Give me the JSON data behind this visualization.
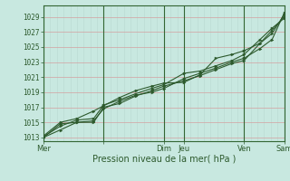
{
  "title": "Pression niveau de la mer( hPa )",
  "bg_color": "#c8e8e0",
  "grid_color_h": "#d4a0a0",
  "grid_color_v_minor": "#b8d8d0",
  "grid_color_v_major": "#336633",
  "line_color": "#2d5a2d",
  "marker_color": "#2d5a2d",
  "yticks": [
    1013,
    1015,
    1017,
    1019,
    1021,
    1023,
    1025,
    1027,
    1029
  ],
  "ylim": [
    1012.5,
    1030.5
  ],
  "xlim": [
    0,
    6.0
  ],
  "xtick_major_pos": [
    0.0,
    1.5,
    3.0,
    3.5,
    5.0,
    6.0
  ],
  "xtick_labels": [
    "Mer",
    "",
    "Dim",
    "Jeu",
    "Ven",
    "Sam"
  ],
  "vline_major": [
    0.0,
    1.5,
    3.0,
    3.5,
    5.0,
    6.0
  ],
  "num_minor_v": 36,
  "lines": [
    {
      "x": [
        0,
        0.42,
        0.83,
        1.25,
        1.5,
        1.9,
        2.3,
        2.7,
        3.0,
        3.5,
        3.9,
        4.3,
        4.7,
        5.0,
        5.4,
        5.7,
        6.0
      ],
      "y": [
        1013.0,
        1014.0,
        1015.0,
        1015.0,
        1017.0,
        1017.5,
        1018.5,
        1019.2,
        1019.8,
        1020.5,
        1021.2,
        1022.0,
        1022.8,
        1023.2,
        1025.5,
        1027.2,
        1029.0
      ]
    },
    {
      "x": [
        0,
        0.42,
        0.83,
        1.25,
        1.5,
        1.9,
        2.3,
        2.7,
        3.0,
        3.5,
        3.9,
        4.3,
        4.7,
        5.0,
        5.4,
        5.7,
        6.0
      ],
      "y": [
        1013.1,
        1014.5,
        1015.3,
        1015.5,
        1017.3,
        1018.0,
        1018.8,
        1019.5,
        1020.0,
        1021.5,
        1021.8,
        1022.5,
        1023.2,
        1024.0,
        1026.0,
        1027.5,
        1028.8
      ]
    },
    {
      "x": [
        0,
        0.42,
        0.83,
        1.25,
        1.5,
        1.9,
        2.3,
        2.7,
        3.0,
        3.5,
        3.9,
        4.3,
        4.7,
        5.0,
        5.4,
        5.7,
        6.0
      ],
      "y": [
        1013.2,
        1015.0,
        1015.5,
        1016.5,
        1017.2,
        1018.3,
        1019.2,
        1019.8,
        1020.2,
        1020.3,
        1021.3,
        1023.5,
        1024.0,
        1024.5,
        1025.5,
        1026.8,
        1029.3
      ]
    },
    {
      "x": [
        0,
        0.42,
        0.83,
        1.25,
        1.5,
        1.9,
        2.3,
        2.7,
        3.0,
        3.5,
        3.9,
        4.3,
        4.7,
        5.0,
        5.4,
        5.7,
        6.0
      ],
      "y": [
        1013.0,
        1014.8,
        1015.0,
        1015.2,
        1016.8,
        1017.8,
        1018.6,
        1019.0,
        1019.5,
        1020.8,
        1021.5,
        1022.2,
        1023.0,
        1023.5,
        1024.8,
        1026.0,
        1029.5
      ]
    }
  ]
}
